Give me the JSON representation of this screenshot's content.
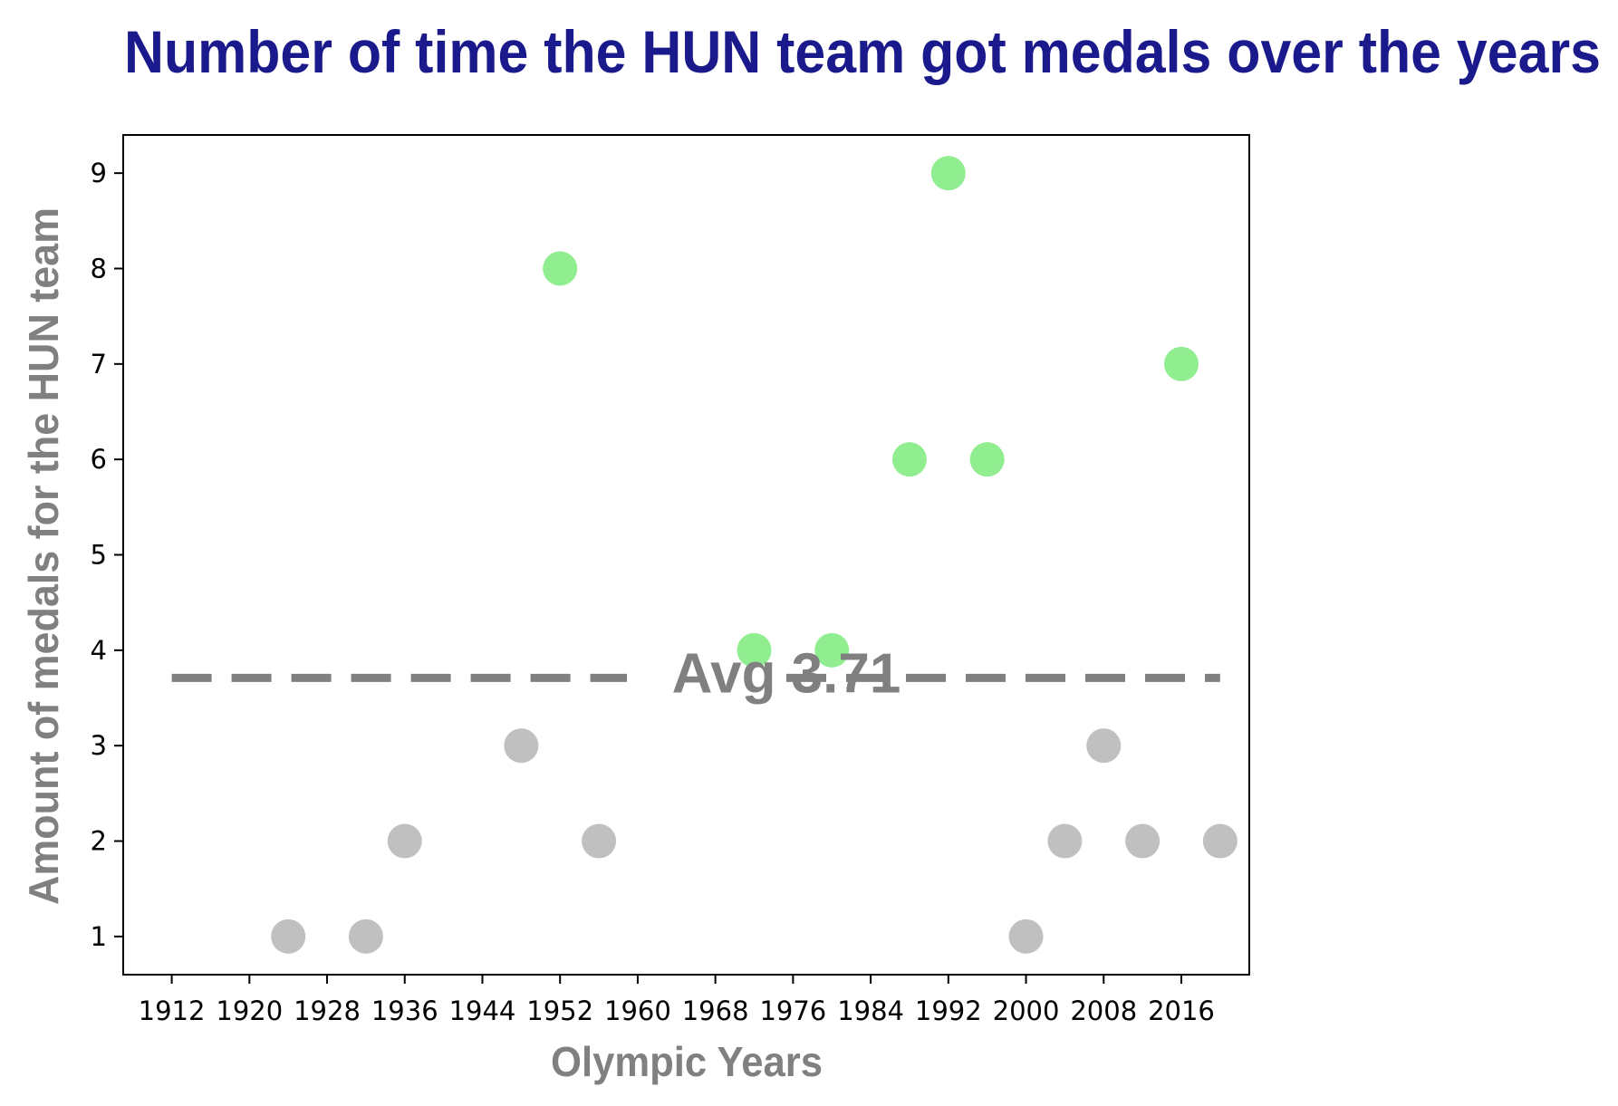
{
  "chart_data": {
    "type": "scatter",
    "title": "Number of time the HUN team got medals over the years",
    "xlabel": "Olympic Years",
    "ylabel": "Amount of medals for the HUN team",
    "xlim": [
      1907,
      2023
    ],
    "ylim": [
      0.6,
      9.4
    ],
    "x_ticks": [
      1912,
      1920,
      1928,
      1936,
      1944,
      1952,
      1960,
      1968,
      1976,
      1984,
      1992,
      2000,
      2008,
      2016
    ],
    "y_ticks": [
      1,
      2,
      3,
      4,
      5,
      6,
      7,
      8,
      9
    ],
    "grid": false,
    "average": {
      "value": 3.71,
      "label": "Avg  3.71",
      "color": "#808080",
      "style": "dashed"
    },
    "colors": {
      "above_average": "#90ee90",
      "below_average": "#c0c0c0",
      "title": "#1a1a8c"
    },
    "points": [
      {
        "x": 1924,
        "y": 1
      },
      {
        "x": 1932,
        "y": 1
      },
      {
        "x": 1936,
        "y": 2
      },
      {
        "x": 1948,
        "y": 3
      },
      {
        "x": 1952,
        "y": 8
      },
      {
        "x": 1956,
        "y": 2
      },
      {
        "x": 1972,
        "y": 4
      },
      {
        "x": 1980,
        "y": 4
      },
      {
        "x": 1988,
        "y": 6
      },
      {
        "x": 1992,
        "y": 9
      },
      {
        "x": 1996,
        "y": 6
      },
      {
        "x": 2000,
        "y": 1
      },
      {
        "x": 2004,
        "y": 2
      },
      {
        "x": 2008,
        "y": 3
      },
      {
        "x": 2012,
        "y": 2
      },
      {
        "x": 2016,
        "y": 7
      },
      {
        "x": 2020,
        "y": 2
      }
    ]
  }
}
